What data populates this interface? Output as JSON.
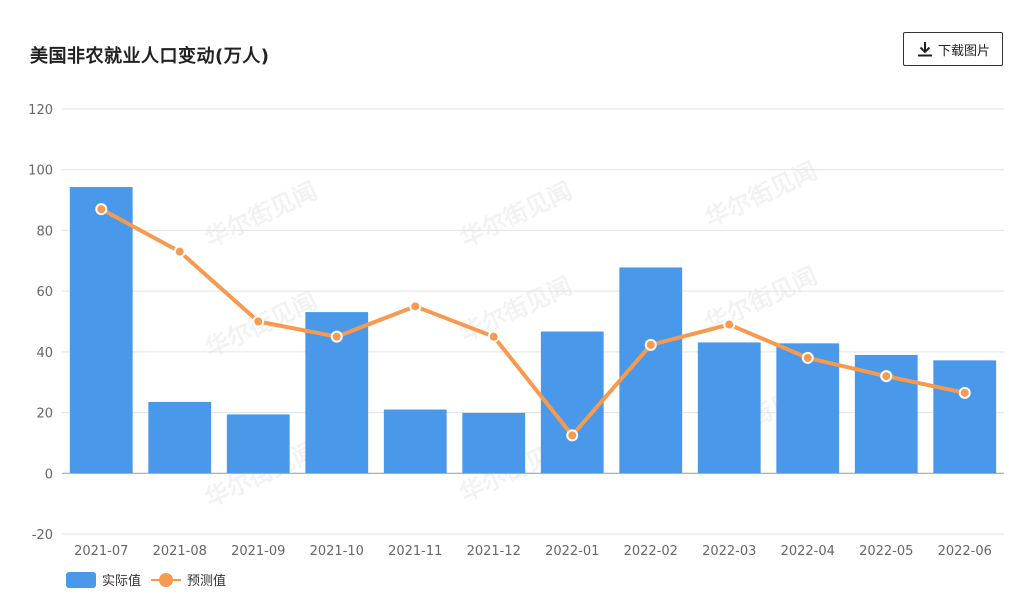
{
  "title": "美国非农就业人口变动(万人)",
  "download_label": "下载图片",
  "watermark_text": "华尔街见闻",
  "colors": {
    "bar": "#4a98e9",
    "line": "#f79a4f",
    "grid": "#e3e3e3",
    "axis": "#999999"
  },
  "chart_data": {
    "type": "bar",
    "title": "美国非农就业人口变动(万人)",
    "xlabel": "",
    "ylabel": "",
    "categories": [
      "2021-07",
      "2021-08",
      "2021-09",
      "2021-10",
      "2021-11",
      "2021-12",
      "2022-01",
      "2022-02",
      "2022-03",
      "2022-04",
      "2022-05",
      "2022-06"
    ],
    "series": [
      {
        "name": "实际值",
        "type": "bar",
        "values": [
          94.3,
          23.5,
          19.4,
          53.1,
          21.0,
          19.9,
          46.7,
          67.8,
          43.1,
          42.8,
          39.0,
          37.2
        ]
      },
      {
        "name": "预测值",
        "type": "line",
        "values": [
          87,
          73,
          50,
          45,
          55,
          45,
          12.5,
          42.3,
          49,
          38,
          32,
          26.5
        ]
      }
    ],
    "ylim": [
      -20,
      120
    ],
    "yticks": [
      "120",
      "100",
      "80",
      "60",
      "40",
      "20",
      "0",
      "-20"
    ],
    "grid": true,
    "legend_position": "bottom-left"
  }
}
